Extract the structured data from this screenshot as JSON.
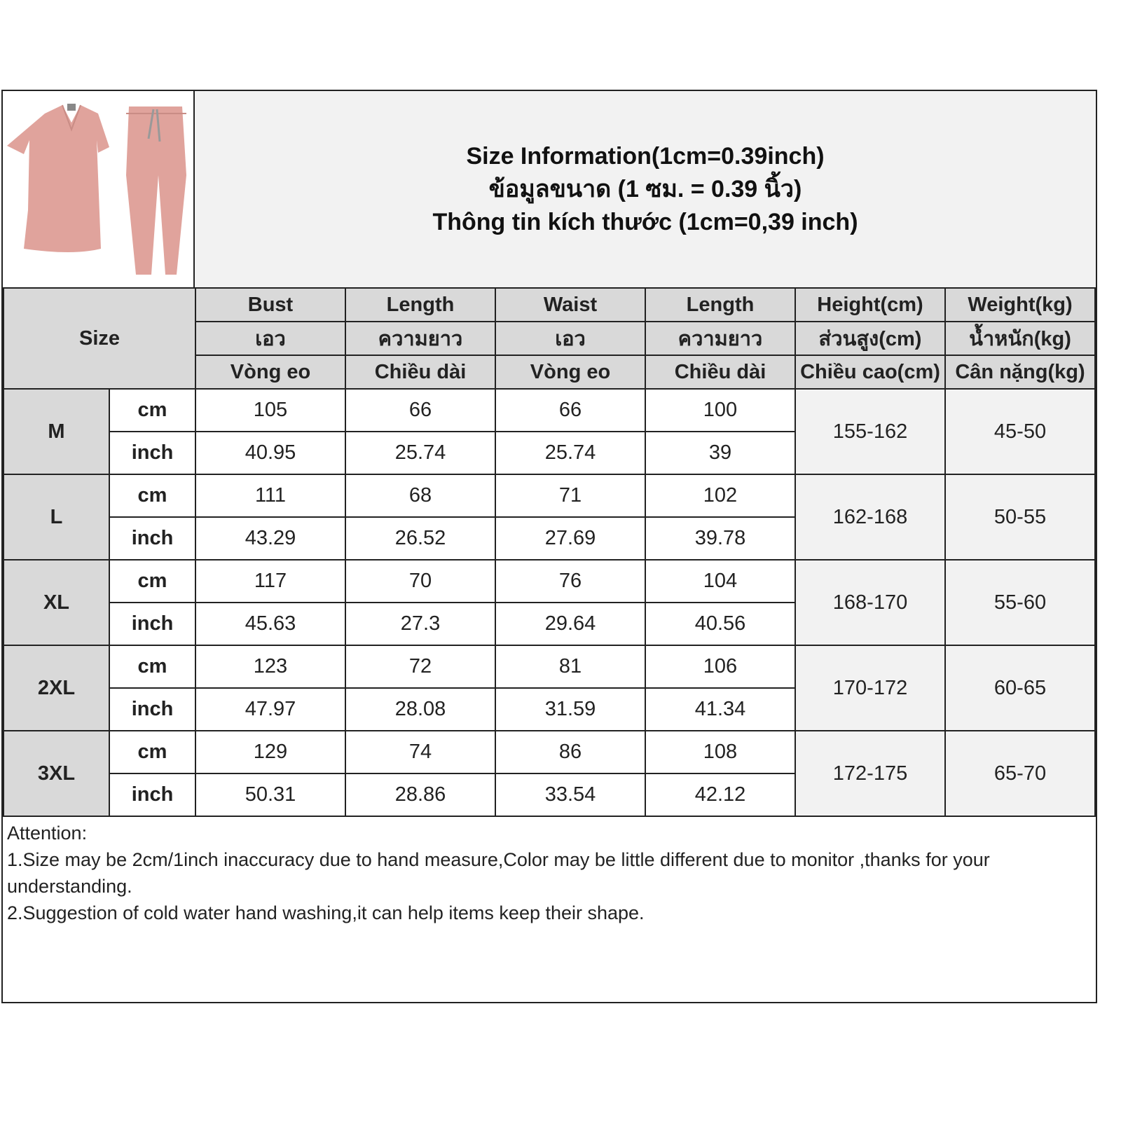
{
  "title": {
    "line1": "Size Information(1cm=0.39inch)",
    "line2": "ข้อมูลขนาด (1 ซม. = 0.39 นิ้ว)",
    "line3": "Thông tin kích thước (1cm=0,39 inch)"
  },
  "product_image": "pink scrubs top and jogger pants",
  "header": {
    "size": "Size",
    "columns": [
      [
        "Bust",
        "เอว",
        "Vòng eo"
      ],
      [
        "Length",
        "ความยาว",
        "Chiều dài"
      ],
      [
        "Waist",
        "เอว",
        "Vòng eo"
      ],
      [
        "Length",
        "ความยาว",
        "Chiều dài"
      ],
      [
        "Height(cm)",
        "ส่วนสูง(cm)",
        "Chiều cao(cm)"
      ],
      [
        "Weight(kg)",
        "น้ำหนัก(kg)",
        "Cân nặng(kg)"
      ]
    ]
  },
  "units": {
    "cm": "cm",
    "inch": "inch"
  },
  "rows": [
    {
      "size": "M",
      "cm": [
        "105",
        "66",
        "66",
        "100"
      ],
      "inch": [
        "40.95",
        "25.74",
        "25.74",
        "39"
      ],
      "height": "155-162",
      "weight": "45-50"
    },
    {
      "size": "L",
      "cm": [
        "111",
        "68",
        "71",
        "102"
      ],
      "inch": [
        "43.29",
        "26.52",
        "27.69",
        "39.78"
      ],
      "height": "162-168",
      "weight": "50-55"
    },
    {
      "size": "XL",
      "cm": [
        "117",
        "70",
        "76",
        "104"
      ],
      "inch": [
        "45.63",
        "27.3",
        "29.64",
        "40.56"
      ],
      "height": "168-170",
      "weight": "55-60"
    },
    {
      "size": "2XL",
      "cm": [
        "123",
        "72",
        "81",
        "106"
      ],
      "inch": [
        "47.97",
        "28.08",
        "31.59",
        "41.34"
      ],
      "height": "170-172",
      "weight": "60-65"
    },
    {
      "size": "3XL",
      "cm": [
        "129",
        "74",
        "86",
        "108"
      ],
      "inch": [
        "50.31",
        "28.86",
        "33.54",
        "42.12"
      ],
      "height": "172-175",
      "weight": "65-70"
    }
  ],
  "attention": {
    "heading": "Attention:",
    "items": [
      "1.Size may be 2cm/1inch inaccuracy due to hand measure,Color may be little different due to monitor ,thanks for your understanding.",
      "2.Suggestion of cold water hand washing,it can help items keep their shape."
    ]
  },
  "colors": {
    "header_gray": "#d9d9d9",
    "title_bg": "#f2f2f2",
    "garment_pink": "#e0a39c"
  }
}
